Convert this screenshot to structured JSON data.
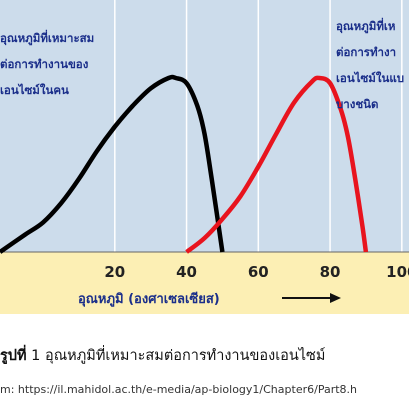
{
  "chart_data": {
    "type": "line",
    "title": "",
    "xlabel": "อุณหภูมิ (องศาเซลเซียส)",
    "ylabel": "",
    "xlim": [
      -12,
      102
    ],
    "ylim": [
      0,
      1
    ],
    "x_ticks": [
      "20",
      "40",
      "60",
      "80",
      "100"
    ],
    "grid": "vertical",
    "series": [
      {
        "color": "#000000",
        "x": [
          -12,
          -5,
          0,
          5,
          10,
          15,
          20,
          25,
          30,
          35,
          37,
          40,
          43,
          45,
          47,
          50
        ],
        "y": [
          0.0,
          0.1,
          0.17,
          0.28,
          0.42,
          0.58,
          0.72,
          0.84,
          0.94,
          1.0,
          1.0,
          0.97,
          0.84,
          0.68,
          0.42,
          0.0
        ]
      },
      {
        "color": "#e8141e",
        "x": [
          40,
          45,
          50,
          55,
          60,
          65,
          70,
          75,
          77,
          80,
          83,
          85,
          87,
          89,
          90
        ],
        "y": [
          0.0,
          0.08,
          0.19,
          0.32,
          0.49,
          0.68,
          0.86,
          0.98,
          1.0,
          0.97,
          0.82,
          0.66,
          0.42,
          0.15,
          0.0
        ]
      }
    ],
    "annotations": [
      {
        "lines": [
          "อุณหภูมิที่เหมาะสม",
          "ต่อการทำงานของ",
          "เอนไซม์ในคน"
        ]
      },
      {
        "lines": [
          "อุณหภูมิที่เห",
          "ต่อการทำงา",
          "เอนไซม์ในแบ",
          "บางชนิด"
        ]
      }
    ]
  },
  "caption": {
    "figure_label": "รูปที่",
    "figure_number": "1",
    "text": "อุณหภูมิที่เหมาะสมต่อการทำงานของเอนไซม์"
  },
  "source": "m: https://il.mahidol.ac.th/e-media/ap-biology1/Chapter6/Part8.h",
  "colors": {
    "plot_background": "#ccdceb",
    "axis_band": "#fcefb4",
    "axis_text": "#1a2e8a",
    "human_curve": "#000000",
    "bacteria_curve": "#e8141e"
  }
}
